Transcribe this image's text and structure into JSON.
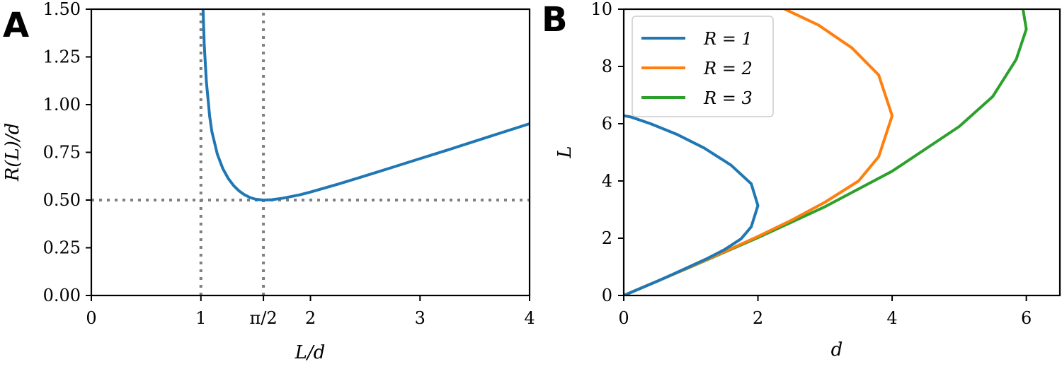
{
  "chart_data": [
    {
      "panel": "A",
      "type": "line",
      "xlabel": "L/d",
      "ylabel": "R(L)/d",
      "xlim": [
        0,
        4
      ],
      "ylim": [
        0,
        1.5
      ],
      "xticks": [
        {
          "value": 0,
          "label": "0"
        },
        {
          "value": 1,
          "label": "1"
        },
        {
          "value": 1.5708,
          "label": "π/2"
        },
        {
          "value": 2,
          "label": "2"
        },
        {
          "value": 3,
          "label": "3"
        },
        {
          "value": 4,
          "label": "4"
        }
      ],
      "yticks": [
        {
          "value": 0,
          "label": "0.00"
        },
        {
          "value": 0.25,
          "label": "0.25"
        },
        {
          "value": 0.5,
          "label": "0.50"
        },
        {
          "value": 0.75,
          "label": "0.75"
        },
        {
          "value": 1.0,
          "label": "1.00"
        },
        {
          "value": 1.25,
          "label": "1.25"
        },
        {
          "value": 1.5,
          "label": "1.50"
        }
      ],
      "reference_lines": {
        "vertical": [
          1,
          1.5708
        ],
        "horizontal": [
          0.5
        ]
      },
      "color": "#1f77b4",
      "x": [
        1.02,
        1.03,
        1.05,
        1.08,
        1.1,
        1.15,
        1.2,
        1.25,
        1.3,
        1.35,
        1.4,
        1.45,
        1.5,
        1.5708,
        1.65,
        1.75,
        1.9,
        2.0,
        2.25,
        2.5,
        2.75,
        3.0,
        3.25,
        3.5,
        3.75,
        4.0
      ],
      "y": [
        1.5,
        1.32,
        1.12,
        0.94,
        0.86,
        0.74,
        0.665,
        0.613,
        0.575,
        0.547,
        0.527,
        0.513,
        0.504,
        0.5,
        0.502,
        0.51,
        0.527,
        0.542,
        0.583,
        0.627,
        0.672,
        0.717,
        0.762,
        0.808,
        0.854,
        0.9
      ]
    },
    {
      "panel": "B",
      "type": "line",
      "xlabel": "d",
      "ylabel": "L",
      "xlim": [
        0,
        6.5
      ],
      "ylim": [
        0,
        10
      ],
      "xticks": [
        {
          "value": 0,
          "label": "0"
        },
        {
          "value": 2,
          "label": "2"
        },
        {
          "value": 4,
          "label": "4"
        },
        {
          "value": 6,
          "label": "6"
        }
      ],
      "yticks": [
        {
          "value": 0,
          "label": "0"
        },
        {
          "value": 2,
          "label": "2"
        },
        {
          "value": 4,
          "label": "4"
        },
        {
          "value": 6,
          "label": "6"
        },
        {
          "value": 8,
          "label": "8"
        },
        {
          "value": 10,
          "label": "10"
        }
      ],
      "legend_position": "upper-left",
      "series": [
        {
          "name": "R = 1",
          "color": "#1f77b4",
          "points": [
            [
              0,
              0
            ],
            [
              0.25,
              0.25
            ],
            [
              0.5,
              0.5
            ],
            [
              0.75,
              0.76
            ],
            [
              1.0,
              1.03
            ],
            [
              1.25,
              1.3
            ],
            [
              1.5,
              1.6
            ],
            [
              1.75,
              1.98
            ],
            [
              1.9,
              2.4
            ],
            [
              2.0,
              3.14
            ],
            [
              1.9,
              3.9
            ],
            [
              1.6,
              4.55
            ],
            [
              1.2,
              5.15
            ],
            [
              0.8,
              5.62
            ],
            [
              0.4,
              6.0
            ],
            [
              0.1,
              6.24
            ],
            [
              0,
              6.28
            ]
          ]
        },
        {
          "name": "R = 2",
          "color": "#ff7f0e",
          "points": [
            [
              0,
              0
            ],
            [
              0.5,
              0.5
            ],
            [
              1.0,
              1.01
            ],
            [
              1.5,
              1.53
            ],
            [
              2.0,
              2.06
            ],
            [
              2.5,
              2.63
            ],
            [
              3.0,
              3.26
            ],
            [
              3.5,
              4.0
            ],
            [
              3.8,
              4.85
            ],
            [
              4.0,
              6.28
            ],
            [
              3.8,
              7.7
            ],
            [
              3.4,
              8.65
            ],
            [
              2.9,
              9.45
            ],
            [
              2.4,
              10.0
            ]
          ]
        },
        {
          "name": "R = 3",
          "color": "#2ca02c",
          "points": [
            [
              0,
              0
            ],
            [
              1.0,
              1.0
            ],
            [
              2.0,
              2.02
            ],
            [
              3.0,
              3.1
            ],
            [
              4.0,
              4.34
            ],
            [
              5.0,
              5.9
            ],
            [
              5.5,
              6.95
            ],
            [
              5.85,
              8.25
            ],
            [
              6.0,
              9.3
            ],
            [
              5.95,
              10.0
            ]
          ]
        }
      ]
    }
  ]
}
